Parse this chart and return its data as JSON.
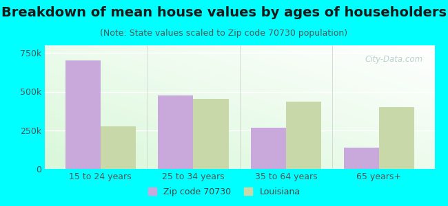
{
  "title": "Breakdown of mean house values by ages of householders",
  "subtitle": "(Note: State values scaled to Zip code 70730 population)",
  "categories": [
    "15 to 24 years",
    "25 to 34 years",
    "35 to 64 years",
    "65 years+"
  ],
  "zip_values": [
    700000,
    475000,
    265000,
    140000
  ],
  "state_values": [
    275000,
    455000,
    435000,
    400000
  ],
  "zip_color": "#c9a8dc",
  "state_color": "#c8d8a8",
  "background_color": "#00ffff",
  "ylim": [
    0,
    800000
  ],
  "yticks": [
    0,
    250000,
    500000,
    750000
  ],
  "ytick_labels": [
    "0",
    "250k",
    "500k",
    "750k"
  ],
  "legend_zip": "Zip code 70730",
  "legend_state": "Louisiana",
  "title_fontsize": 14,
  "subtitle_fontsize": 9,
  "tick_fontsize": 9,
  "legend_fontsize": 9,
  "bar_width": 0.38,
  "watermark": "City-Data.com"
}
